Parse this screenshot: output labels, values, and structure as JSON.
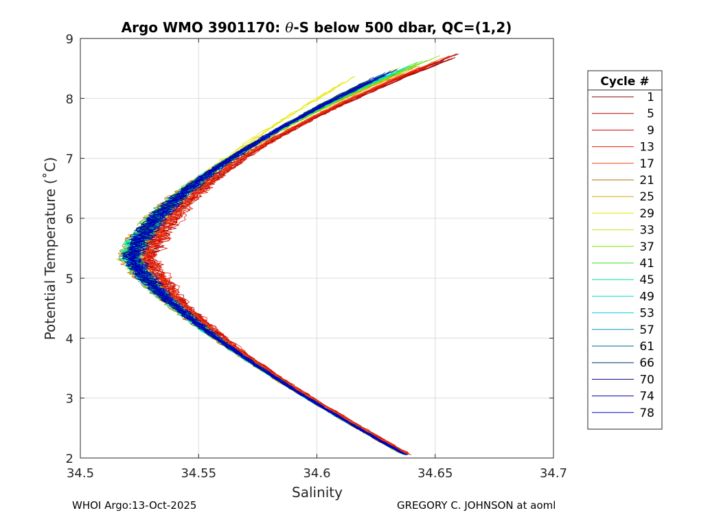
{
  "chart_data": {
    "type": "line",
    "title_prefix": "Argo WMO 3901170: ",
    "title_theta": "θ",
    "title_suffix": "-S below 500 dbar,  QC=(1,2)",
    "xlabel": "Salinity",
    "ylabel": "Potential Temperature (˚C)",
    "xlim": [
      34.5,
      34.7
    ],
    "ylim": [
      2,
      9
    ],
    "xticks": [
      34.5,
      34.55,
      34.6,
      34.65,
      34.7
    ],
    "xtick_labels": [
      "34.5",
      "34.55",
      "34.6",
      "34.65",
      "34.7"
    ],
    "yticks": [
      2,
      3,
      4,
      5,
      6,
      7,
      8,
      9
    ],
    "ytick_labels": [
      "2",
      "3",
      "4",
      "5",
      "6",
      "7",
      "8",
      "9"
    ],
    "grid": true,
    "legend": {
      "title": "Cycle #",
      "position": "right-outside",
      "entries": [
        {
          "label": "1",
          "color": "#800000"
        },
        {
          "label": "5",
          "color": "#aa0000"
        },
        {
          "label": "9",
          "color": "#d40000"
        },
        {
          "label": "13",
          "color": "#e61a00"
        },
        {
          "label": "17",
          "color": "#e84a1a"
        },
        {
          "label": "21",
          "color": "#b86a00"
        },
        {
          "label": "25",
          "color": "#d4aa00"
        },
        {
          "label": "29",
          "color": "#e6e600"
        },
        {
          "label": "33",
          "color": "#c8e600"
        },
        {
          "label": "37",
          "color": "#7ae600"
        },
        {
          "label": "41",
          "color": "#2ee62e"
        },
        {
          "label": "45",
          "color": "#00e69a"
        },
        {
          "label": "49",
          "color": "#00e6cc"
        },
        {
          "label": "53",
          "color": "#00cce6"
        },
        {
          "label": "57",
          "color": "#0099aa"
        },
        {
          "label": "61",
          "color": "#006680"
        },
        {
          "label": "66",
          "color": "#003366"
        },
        {
          "label": "70",
          "color": "#000080"
        },
        {
          "label": "74",
          "color": "#0000b3"
        },
        {
          "label": "78",
          "color": "#0000cc"
        }
      ]
    },
    "series": [
      {
        "name": "1",
        "color": "#800000",
        "offset": 0.0045,
        "top": 8.85,
        "topS": 34.666
      },
      {
        "name": "5",
        "color": "#aa0000",
        "offset": 0.0055,
        "top": 8.8,
        "topS": 34.664
      },
      {
        "name": "9",
        "color": "#d40000",
        "offset": 0.006,
        "top": 8.78,
        "topS": 34.66
      },
      {
        "name": "13",
        "color": "#e61a00",
        "offset": 0.0065,
        "top": 8.75,
        "topS": 34.658
      },
      {
        "name": "17",
        "color": "#e84a1a",
        "offset": 0.005,
        "top": 8.72,
        "topS": 34.655
      },
      {
        "name": "21",
        "color": "#b86a00",
        "offset": -0.0025,
        "top": 8.7,
        "topS": 34.652
      },
      {
        "name": "25",
        "color": "#d4aa00",
        "offset": -0.0015,
        "top": 8.65,
        "topS": 34.65
      },
      {
        "name": "29",
        "color": "#e6e600",
        "offset": -0.001,
        "top": 8.45,
        "topS": 34.62
      },
      {
        "name": "33",
        "color": "#c8e600",
        "offset": -0.0005,
        "top": 8.6,
        "topS": 34.64
      },
      {
        "name": "37",
        "color": "#7ae600",
        "offset": -0.0008,
        "top": 8.78,
        "topS": 34.656
      },
      {
        "name": "41",
        "color": "#2ee62e",
        "offset": -0.0005,
        "top": 8.72,
        "topS": 34.65
      },
      {
        "name": "45",
        "color": "#00e69a",
        "offset": -0.001,
        "top": 8.62,
        "topS": 34.645
      },
      {
        "name": "49",
        "color": "#00e6cc",
        "offset": -0.0012,
        "top": 8.55,
        "topS": 34.64
      },
      {
        "name": "53",
        "color": "#00cce6",
        "offset": -0.001,
        "top": 8.5,
        "topS": 34.635
      },
      {
        "name": "57",
        "color": "#0099aa",
        "offset": -0.0005,
        "top": 8.48,
        "topS": 34.632
      },
      {
        "name": "61",
        "color": "#006680",
        "offset": 0.0,
        "top": 8.45,
        "topS": 34.63
      },
      {
        "name": "66",
        "color": "#003366",
        "offset": 0.0005,
        "top": 8.42,
        "topS": 34.628
      },
      {
        "name": "70",
        "color": "#000080",
        "offset": 0.0,
        "top": 8.55,
        "topS": 34.638
      },
      {
        "name": "74",
        "color": "#0000b3",
        "offset": -0.0005,
        "top": 8.52,
        "topS": 34.636
      },
      {
        "name": "78",
        "color": "#0000cc",
        "offset": 0.0005,
        "top": 8.5,
        "topS": 34.634
      }
    ]
  },
  "footer": {
    "left": "WHOI Argo:13-Oct-2025",
    "right": "GREGORY C. JOHNSON at aoml"
  }
}
